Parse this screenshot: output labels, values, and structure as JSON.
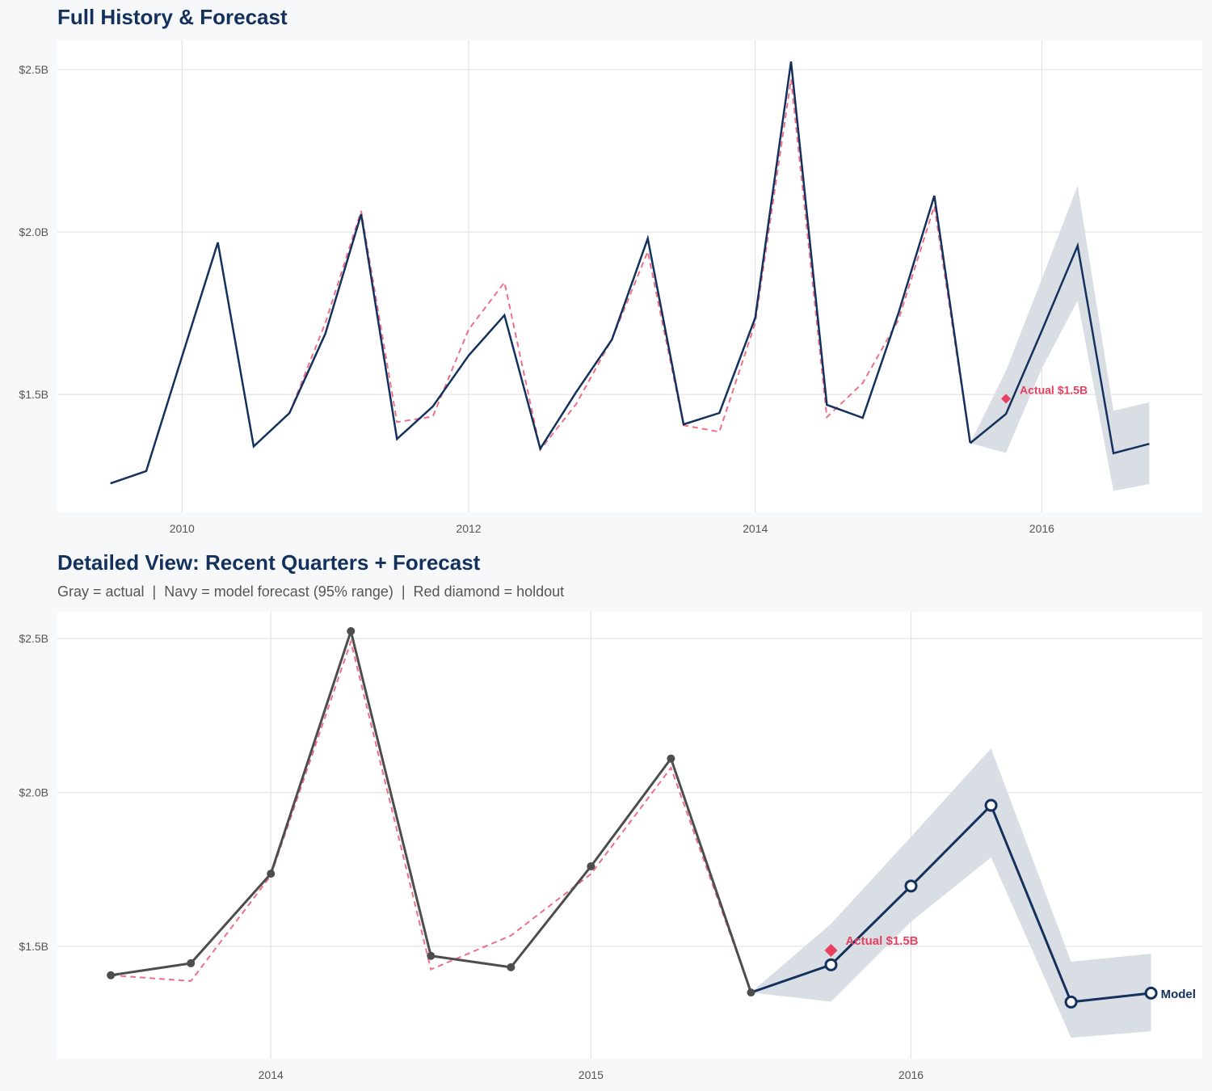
{
  "colors": {
    "navy": "#13315c",
    "gray": "#4d4d4d",
    "red": "#e8405f",
    "band": "#d9dee5",
    "grid": "#e3e3e3"
  },
  "chart_data": [
    {
      "type": "line",
      "title": "Full History & Forecast",
      "xlim": [
        2009.13,
        2017.12
      ],
      "ylim": [
        1.137,
        2.59
      ],
      "x_ticks": [
        2010,
        2012,
        2014,
        2016
      ],
      "x_tick_labels": [
        "2010",
        "2012",
        "2014",
        "2016"
      ],
      "y_ticks": [
        1.5,
        2.0,
        2.5
      ],
      "y_tick_labels": [
        "$1.5B",
        "$2.0B",
        "$2.5B"
      ],
      "grid": true,
      "actual": {
        "x": [
          2009.5,
          2009.75,
          2010.0,
          2010.25,
          2010.5,
          2010.75,
          2011.0,
          2011.25,
          2011.5,
          2011.75,
          2012.0,
          2012.25,
          2012.5,
          2012.75,
          2013.0,
          2013.25,
          2013.5,
          2013.75,
          2014.0,
          2014.25,
          2014.5,
          2014.75,
          2015.0,
          2015.25,
          2015.5
        ],
        "y": [
          1.226,
          1.264,
          1.617,
          1.968,
          1.34,
          1.443,
          1.687,
          2.055,
          1.363,
          1.463,
          1.62,
          1.744,
          1.333,
          1.507,
          1.669,
          1.98,
          1.408,
          1.443,
          1.736,
          2.525,
          1.468,
          1.428,
          1.751,
          2.112,
          1.351
        ]
      },
      "fitted": {
        "x": [
          2010.75,
          2011.0,
          2011.25,
          2011.5,
          2011.75,
          2012.0,
          2012.25,
          2012.5,
          2012.75,
          2013.0,
          2013.25,
          2013.5,
          2013.75,
          2014.0,
          2014.25,
          2014.5,
          2014.75,
          2015.0,
          2015.25,
          2015.5
        ],
        "y": [
          1.443,
          1.72,
          2.065,
          1.415,
          1.432,
          1.7,
          1.845,
          1.33,
          1.47,
          1.67,
          1.94,
          1.405,
          1.385,
          1.72,
          2.47,
          1.43,
          1.535,
          1.73,
          2.08,
          1.35
        ]
      },
      "forecast": {
        "x": [
          2015.5,
          2015.75,
          2016.0,
          2016.25,
          2016.5,
          2016.75
        ],
        "y": [
          1.35,
          1.44,
          1.696,
          1.958,
          1.319,
          1.348
        ],
        "lower": [
          1.35,
          1.32,
          1.58,
          1.789,
          1.203,
          1.224
        ],
        "upper": [
          1.35,
          1.573,
          1.856,
          2.143,
          1.45,
          1.476
        ]
      },
      "holdout": {
        "x": 2015.75,
        "y": 1.487,
        "label": "Actual $1.5B"
      },
      "actual_style": "navy-no-markers"
    },
    {
      "type": "line",
      "title": "Detailed View: Recent Quarters + Forecast",
      "subtitle": "Gray = actual  |  Navy = model forecast (95% range)  |  Red diamond = holdout",
      "xlim": [
        2013.333,
        2016.91
      ],
      "ylim": [
        1.135,
        2.587
      ],
      "x_ticks": [
        2014,
        2015,
        2016
      ],
      "x_tick_labels": [
        "2014",
        "2015",
        "2016"
      ],
      "y_ticks": [
        1.5,
        2.0,
        2.5
      ],
      "y_tick_labels": [
        "$1.5B",
        "$2.0B",
        "$2.5B"
      ],
      "grid": true,
      "actual": {
        "x": [
          2013.5,
          2013.75,
          2014.0,
          2014.25,
          2014.5,
          2014.75,
          2015.0,
          2015.25,
          2015.5
        ],
        "y": [
          1.406,
          1.445,
          1.736,
          2.524,
          1.469,
          1.432,
          1.76,
          2.11,
          1.35
        ]
      },
      "fitted": {
        "x": [
          2013.5,
          2013.75,
          2014.0,
          2014.25,
          2014.5,
          2014.75,
          2015.0,
          2015.25,
          2015.5
        ],
        "y": [
          1.406,
          1.387,
          1.73,
          2.49,
          1.425,
          1.535,
          1.735,
          2.08,
          1.35
        ]
      },
      "forecast": {
        "x": [
          2015.5,
          2015.75,
          2016.0,
          2016.25,
          2016.5,
          2016.75
        ],
        "y": [
          1.35,
          1.44,
          1.696,
          1.958,
          1.319,
          1.348
        ],
        "lower": [
          1.35,
          1.32,
          1.58,
          1.789,
          1.203,
          1.224
        ],
        "upper": [
          1.35,
          1.573,
          1.856,
          2.143,
          1.45,
          1.476
        ]
      },
      "holdout": {
        "x": 2015.75,
        "y": 1.487,
        "label": "Actual $1.5B"
      },
      "model_label": "Model",
      "actual_style": "gray-markers"
    }
  ]
}
